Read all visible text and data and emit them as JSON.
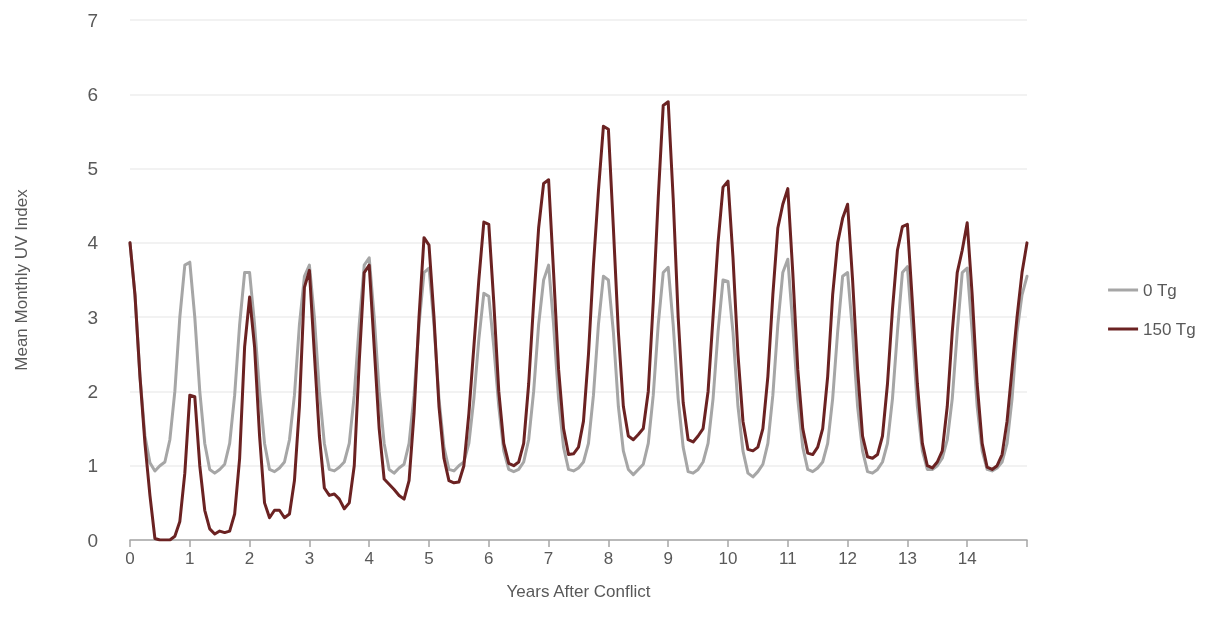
{
  "chart_data": {
    "type": "line",
    "xlabel": "Years After Conflict",
    "ylabel": "Mean Monthly UV Index",
    "x": [
      0,
      0.0833,
      0.1667,
      0.25,
      0.3333,
      0.4167,
      0.5,
      0.5833,
      0.6667,
      0.75,
      0.8333,
      0.9167,
      1,
      1.0833,
      1.1667,
      1.25,
      1.3333,
      1.4167,
      1.5,
      1.5833,
      1.6667,
      1.75,
      1.8333,
      1.9167,
      2,
      2.0833,
      2.1667,
      2.25,
      2.3333,
      2.4167,
      2.5,
      2.5833,
      2.6667,
      2.75,
      2.8333,
      2.9167,
      3,
      3.0833,
      3.1667,
      3.25,
      3.3333,
      3.4167,
      3.5,
      3.5833,
      3.6667,
      3.75,
      3.8333,
      3.9167,
      4,
      4.0833,
      4.1667,
      4.25,
      4.3333,
      4.4167,
      4.5,
      4.5833,
      4.6667,
      4.75,
      4.8333,
      4.9167,
      5,
      5.0833,
      5.1667,
      5.25,
      5.3333,
      5.4167,
      5.5,
      5.5833,
      5.6667,
      5.75,
      5.8333,
      5.9167,
      6,
      6.0833,
      6.1667,
      6.25,
      6.3333,
      6.4167,
      6.5,
      6.5833,
      6.6667,
      6.75,
      6.8333,
      6.9167,
      7,
      7.0833,
      7.1667,
      7.25,
      7.3333,
      7.4167,
      7.5,
      7.5833,
      7.6667,
      7.75,
      7.8333,
      7.9167,
      8,
      8.0833,
      8.1667,
      8.25,
      8.3333,
      8.4167,
      8.5,
      8.5833,
      8.6667,
      8.75,
      8.8333,
      8.9167,
      9,
      9.0833,
      9.1667,
      9.25,
      9.3333,
      9.4167,
      9.5,
      9.5833,
      9.6667,
      9.75,
      9.8333,
      9.9167,
      10,
      10.0833,
      10.1667,
      10.25,
      10.3333,
      10.4167,
      10.5,
      10.5833,
      10.6667,
      10.75,
      10.8333,
      10.9167,
      11,
      11.0833,
      11.1667,
      11.25,
      11.3333,
      11.4167,
      11.5,
      11.5833,
      11.6667,
      11.75,
      11.8333,
      11.9167,
      12,
      12.0833,
      12.1667,
      12.25,
      12.3333,
      12.4167,
      12.5,
      12.5833,
      12.6667,
      12.75,
      12.8333,
      12.9167,
      13,
      13.0833,
      13.1667,
      13.25,
      13.3333,
      13.4167,
      13.5,
      13.5833,
      13.6667,
      13.75,
      13.8333,
      13.9167,
      14,
      14.0833,
      14.1667,
      14.25,
      14.3333,
      14.4167,
      14.5,
      14.5833,
      14.6667,
      14.75,
      14.8333,
      14.9167,
      15
    ],
    "xlim": [
      0,
      15
    ],
    "xticks": [
      0,
      1,
      2,
      3,
      4,
      5,
      6,
      7,
      8,
      9,
      10,
      11,
      12,
      13,
      14,
      {
        "value": 15,
        "label": null
      }
    ],
    "series": [
      {
        "name": "0 Tg",
        "color": "#a6a6a6",
        "values": [
          4.0,
          3.3,
          2.2,
          1.4,
          1.04,
          0.93,
          1.0,
          1.05,
          1.35,
          2.0,
          3.0,
          3.7,
          3.74,
          3.0,
          2.0,
          1.3,
          0.95,
          0.9,
          0.95,
          1.02,
          1.3,
          1.95,
          2.9,
          3.6,
          3.6,
          2.9,
          2.0,
          1.3,
          0.95,
          0.92,
          0.97,
          1.05,
          1.35,
          1.95,
          2.9,
          3.55,
          3.7,
          3.0,
          2.0,
          1.3,
          0.95,
          0.93,
          0.98,
          1.05,
          1.3,
          1.95,
          2.9,
          3.7,
          3.8,
          3.0,
          2.0,
          1.3,
          0.95,
          0.9,
          0.97,
          1.02,
          1.3,
          1.95,
          2.9,
          3.6,
          3.66,
          2.9,
          1.9,
          1.25,
          0.95,
          0.93,
          1.0,
          1.05,
          1.3,
          1.9,
          2.7,
          3.32,
          3.28,
          2.6,
          1.8,
          1.2,
          0.95,
          0.92,
          0.95,
          1.05,
          1.35,
          2.0,
          2.9,
          3.5,
          3.7,
          2.9,
          1.9,
          1.25,
          0.95,
          0.93,
          0.97,
          1.05,
          1.3,
          1.95,
          2.9,
          3.55,
          3.5,
          2.8,
          1.8,
          1.2,
          0.95,
          0.88,
          0.95,
          1.02,
          1.3,
          1.95,
          2.9,
          3.6,
          3.67,
          2.9,
          1.9,
          1.25,
          0.92,
          0.9,
          0.95,
          1.05,
          1.3,
          1.9,
          2.8,
          3.5,
          3.48,
          2.8,
          1.8,
          1.2,
          0.9,
          0.85,
          0.92,
          1.02,
          1.3,
          1.95,
          2.9,
          3.6,
          3.78,
          2.9,
          1.9,
          1.25,
          0.95,
          0.92,
          0.97,
          1.05,
          1.3,
          1.9,
          2.8,
          3.55,
          3.6,
          2.8,
          1.8,
          1.2,
          0.92,
          0.9,
          0.95,
          1.05,
          1.3,
          1.9,
          2.8,
          3.6,
          3.68,
          2.8,
          1.8,
          1.2,
          0.95,
          0.95,
          1.0,
          1.1,
          1.35,
          1.9,
          2.8,
          3.6,
          3.66,
          2.8,
          1.8,
          1.2,
          0.95,
          0.93,
          0.97,
          1.05,
          1.3,
          1.9,
          2.8,
          3.3,
          3.55
        ]
      },
      {
        "name": "150 Tg",
        "color": "#6b2222",
        "values": [
          4.0,
          3.3,
          2.2,
          1.3,
          0.6,
          0.02,
          0,
          0,
          0,
          0.05,
          0.25,
          0.9,
          1.95,
          1.93,
          1.0,
          0.4,
          0.15,
          0.08,
          0.12,
          0.1,
          0.12,
          0.35,
          1.1,
          2.6,
          3.27,
          2.6,
          1.4,
          0.5,
          0.3,
          0.4,
          0.4,
          0.3,
          0.35,
          0.8,
          1.8,
          3.4,
          3.63,
          2.5,
          1.4,
          0.7,
          0.6,
          0.62,
          0.55,
          0.42,
          0.5,
          1.0,
          2.4,
          3.6,
          3.7,
          2.6,
          1.5,
          0.82,
          0.75,
          0.68,
          0.6,
          0.55,
          0.8,
          1.7,
          3.0,
          4.07,
          3.97,
          3.0,
          1.8,
          1.1,
          0.8,
          0.77,
          0.78,
          1.0,
          1.7,
          2.6,
          3.5,
          4.28,
          4.25,
          3.2,
          2.0,
          1.3,
          1.03,
          1.0,
          1.05,
          1.3,
          2.1,
          3.2,
          4.2,
          4.8,
          4.85,
          3.6,
          2.3,
          1.5,
          1.15,
          1.16,
          1.25,
          1.6,
          2.5,
          3.7,
          4.7,
          5.57,
          5.53,
          4.2,
          2.8,
          1.8,
          1.4,
          1.35,
          1.42,
          1.5,
          2.0,
          3.2,
          4.6,
          5.85,
          5.9,
          4.6,
          3.0,
          1.85,
          1.35,
          1.32,
          1.4,
          1.5,
          2.0,
          3.0,
          4.0,
          4.75,
          4.83,
          3.8,
          2.5,
          1.6,
          1.22,
          1.2,
          1.25,
          1.5,
          2.2,
          3.3,
          4.2,
          4.52,
          4.73,
          3.6,
          2.3,
          1.5,
          1.17,
          1.15,
          1.25,
          1.5,
          2.2,
          3.3,
          4.0,
          4.33,
          4.52,
          3.5,
          2.3,
          1.4,
          1.12,
          1.1,
          1.15,
          1.4,
          2.1,
          3.1,
          3.9,
          4.22,
          4.25,
          3.2,
          2.1,
          1.3,
          1.0,
          0.97,
          1.05,
          1.2,
          1.8,
          2.8,
          3.6,
          3.9,
          4.27,
          3.3,
          2.1,
          1.3,
          0.98,
          0.95,
          1.0,
          1.15,
          1.6,
          2.3,
          3.0,
          3.6,
          4.0
        ]
      }
    ],
    "ylim": [
      0,
      7
    ],
    "yticks": [
      0,
      1,
      2,
      3,
      4,
      5,
      6,
      7
    ],
    "grid": "y",
    "legend": "right",
    "marker": "none",
    "line_style": "solid"
  }
}
